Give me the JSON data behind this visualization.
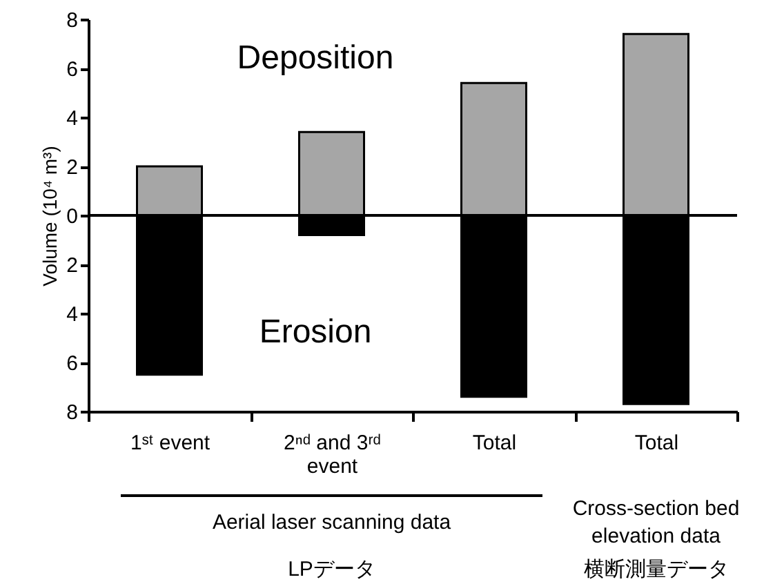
{
  "chart_data": {
    "type": "bar",
    "stacked": true,
    "ylabel": "Volume (10⁴ m³)",
    "categories": [
      "1ˢᵗ event",
      "2ⁿᵈ and 3ʳᵈ event",
      "Total",
      "Total"
    ],
    "series": [
      {
        "name": "Deposition",
        "color": "#a6a6a6",
        "values": [
          2.0,
          3.4,
          5.4,
          7.4
        ]
      },
      {
        "name": "Erosion",
        "color": "#000000",
        "values": [
          -6.5,
          -0.8,
          -7.4,
          -7.7
        ]
      }
    ],
    "ylim": [
      -8,
      8
    ],
    "yticks": [
      {
        "value": -8,
        "label": "8"
      },
      {
        "value": -6,
        "label": "6"
      },
      {
        "value": -4,
        "label": "4"
      },
      {
        "value": -2,
        "label": "2"
      },
      0,
      2,
      4,
      6,
      8
    ],
    "ref_lines": [
      {
        "axis": "y",
        "value": 0
      }
    ],
    "annotations": [
      "Aerial laser scanning data",
      "Cross-section bed elevation data",
      "LPデータ",
      "横断測量データ"
    ],
    "grid": false
  }
}
